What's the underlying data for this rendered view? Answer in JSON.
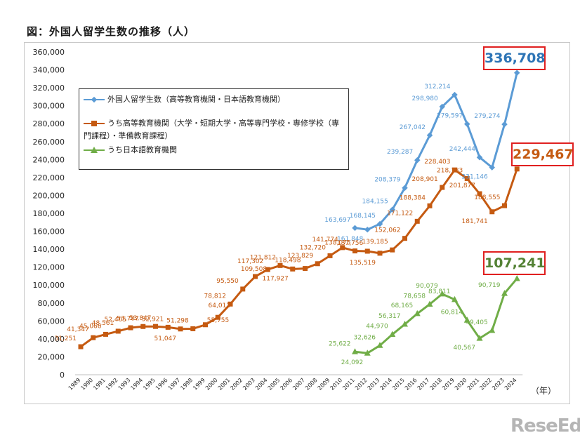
{
  "title": "図：外国人留学生数の推移（人）",
  "unit_label": "（年）",
  "watermark": "ReseEd",
  "chart_data": {
    "type": "line",
    "x": [
      "1989",
      "1990",
      "1991",
      "1992",
      "1993",
      "1994",
      "1995",
      "1996",
      "1997",
      "1998",
      "1999",
      "2000",
      "2001",
      "2002",
      "2003",
      "2004",
      "2005",
      "2006",
      "2007",
      "2008",
      "2009",
      "2010",
      "2011",
      "2012",
      "2013",
      "2014",
      "2015",
      "2016",
      "2017",
      "2018",
      "2019",
      "2020",
      "2021",
      "2022",
      "2023",
      "2024"
    ],
    "ylim": [
      0,
      360000
    ],
    "yticks": [
      "0",
      "20,000",
      "40,000",
      "60,000",
      "80,000",
      "100,000",
      "120,000",
      "140,000",
      "160,000",
      "180,000",
      "200,000",
      "220,000",
      "240,000",
      "260,000",
      "280,000",
      "300,000",
      "320,000",
      "340,000",
      "360,000"
    ],
    "grid": false,
    "legend_position": "top-left",
    "series": [
      {
        "name": "外国人留学生数（高等教育機関・日本語教育機関）",
        "color": "#5b9bd5",
        "marker": "diamond",
        "values": [
          null,
          null,
          null,
          null,
          null,
          null,
          null,
          null,
          null,
          null,
          null,
          null,
          null,
          null,
          null,
          null,
          null,
          null,
          null,
          null,
          null,
          null,
          163697,
          161848,
          168145,
          184155,
          208379,
          239287,
          267042,
          298980,
          312214,
          279597,
          242444,
          231146,
          279274,
          336708
        ],
        "labels": [
          null,
          null,
          null,
          null,
          null,
          null,
          null,
          null,
          null,
          null,
          null,
          null,
          null,
          null,
          null,
          null,
          null,
          null,
          null,
          null,
          null,
          null,
          "163,697",
          "161,848",
          "168,145",
          "184,155",
          "208,379",
          "239,287",
          "267,042",
          "298,980",
          "312,214",
          "279,597",
          "242,444",
          "231,146",
          "279,274",
          "336,708"
        ]
      },
      {
        "name": "うち高等教育機関（大学・短期大学・高等専門学校・専修学校（専門課程）・準備教育課程）",
        "color": "#c55a11",
        "marker": "square",
        "values": [
          31251,
          41347,
          45066,
          48561,
          52405,
          53787,
          53847,
          52921,
          51047,
          51298,
          55755,
          64011,
          78812,
          95550,
          109508,
          117302,
          121812,
          117927,
          118498,
          123829,
          132720,
          141774,
          138075,
          137756,
          135519,
          139185,
          152062,
          171122,
          188384,
          208901,
          228403,
          218783,
          201877,
          181741,
          188555,
          229467
        ],
        "labels": [
          "31,251",
          "41,347",
          "45,066",
          "48,561",
          "52,405",
          "53,787",
          "53,847",
          "52,921",
          "51,047",
          "51,298",
          "55,755",
          "64,011",
          "78,812",
          "95,550",
          "109,508",
          "117,302",
          "121,812",
          "117,927",
          "118,498",
          "123,829",
          "132,720",
          "141,774",
          "138,075",
          "137,756",
          "135,519",
          "139,185",
          "152,062",
          "171,122",
          "188,384",
          "208,901",
          "228,403",
          "218,783",
          "201,877",
          "181,741",
          "188,555",
          "229,467"
        ]
      },
      {
        "name": "うち日本語教育機関",
        "color": "#70ad47",
        "marker": "triangle",
        "values": [
          null,
          null,
          null,
          null,
          null,
          null,
          null,
          null,
          null,
          null,
          null,
          null,
          null,
          null,
          null,
          null,
          null,
          null,
          null,
          null,
          null,
          null,
          25622,
          24092,
          32626,
          44970,
          56317,
          68165,
          78658,
          90079,
          83811,
          60814,
          40567,
          49405,
          90719,
          107241
        ],
        "labels": [
          null,
          null,
          null,
          null,
          null,
          null,
          null,
          null,
          null,
          null,
          null,
          null,
          null,
          null,
          null,
          null,
          null,
          null,
          null,
          null,
          null,
          null,
          "25,622",
          "24,092",
          "32,626",
          "44,970",
          "56,317",
          "68,165",
          "78,658",
          "90,079",
          "83,811",
          "60,814",
          "40,567",
          "49,405",
          "90,719",
          "107,241"
        ]
      }
    ],
    "callouts": [
      {
        "text": "336,708",
        "color": "#2e75b6"
      },
      {
        "text": "229,467",
        "color": "#c55a11"
      },
      {
        "text": "107,241",
        "color": "#548235"
      }
    ]
  }
}
